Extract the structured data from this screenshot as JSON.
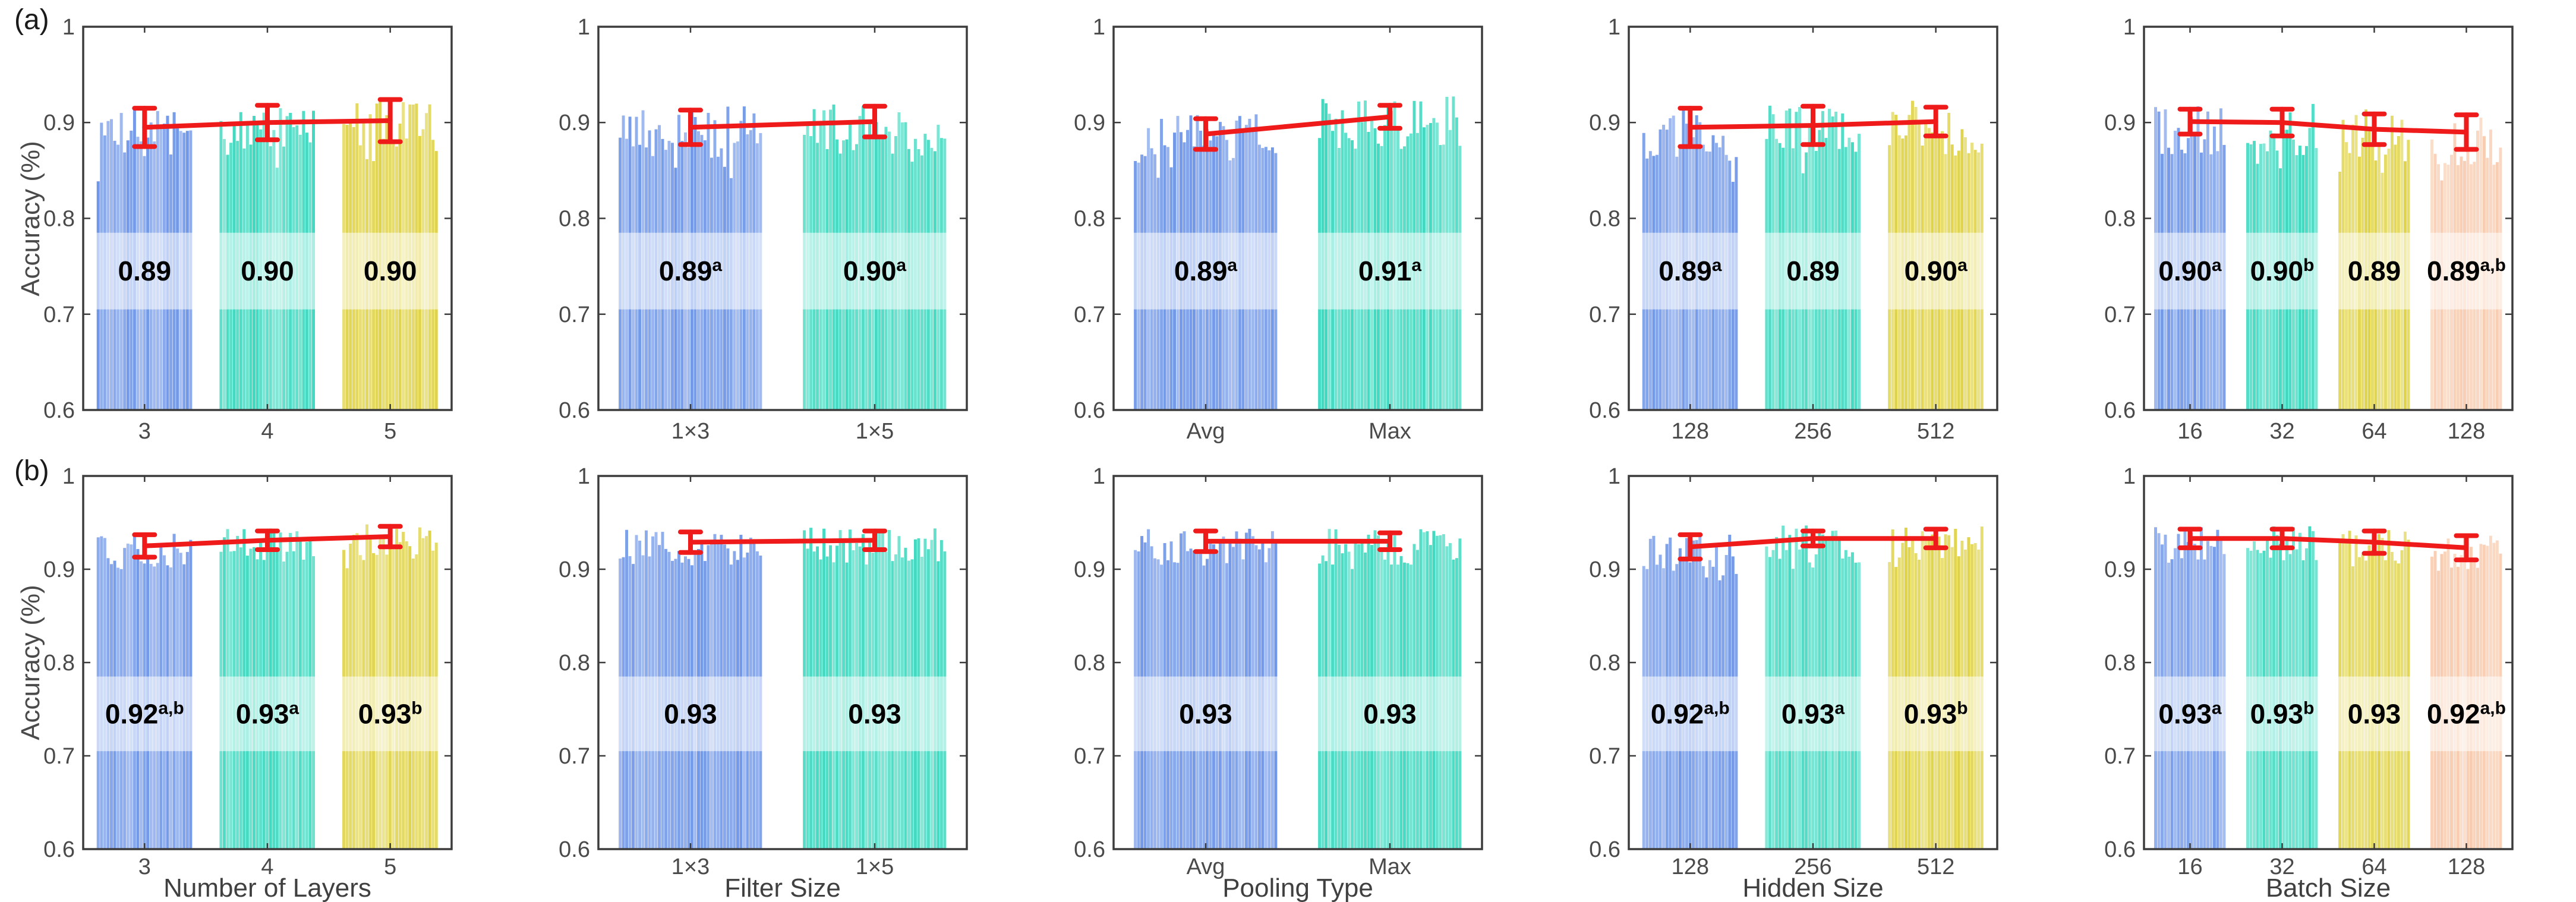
{
  "panel_labels": [
    "(a)",
    "(b)"
  ],
  "ylabel": "Accuracy (%)",
  "colors": {
    "bar_palette": [
      "#7097E8",
      "#41D9C0",
      "#DFD34A",
      "#F8CCB0"
    ],
    "error_bar": "#EF1A1A",
    "axis_frame": "#3C3C3C",
    "tick_text": "#4A4A4A",
    "xlabel_text": "#404040",
    "value_text": "#000000",
    "label_band": "rgba(255,255,255,0.55)"
  },
  "y_axis": {
    "min": 0.6,
    "max": 1.0,
    "tick_values": [
      1,
      0.9,
      0.8,
      0.7,
      0.6
    ],
    "tick_labels": [
      "1",
      "0.9",
      "0.8",
      "0.7",
      "0.6"
    ]
  },
  "chart_data": [
    {
      "panel": "a",
      "type": "bar",
      "xlabel": "",
      "column": "Number of Layers",
      "categories": [
        "3",
        "4",
        "5"
      ],
      "means": [
        0.895,
        0.9,
        0.902
      ],
      "errors": [
        0.02,
        0.018,
        0.022
      ],
      "value_labels": [
        "0.89",
        "0.90",
        "0.90"
      ],
      "superscripts": [
        "",
        "",
        ""
      ],
      "ylim": [
        0.6,
        1.0
      ]
    },
    {
      "panel": "a",
      "type": "bar",
      "xlabel": "",
      "column": "Filter Size",
      "categories": [
        "1×3",
        "1×5"
      ],
      "means": [
        0.895,
        0.901
      ],
      "errors": [
        0.018,
        0.016
      ],
      "value_labels": [
        "0.89",
        "0.90"
      ],
      "superscripts": [
        "a",
        "a"
      ],
      "ylim": [
        0.6,
        1.0
      ]
    },
    {
      "panel": "a",
      "type": "bar",
      "xlabel": "",
      "column": "Pooling Type",
      "categories": [
        "Avg",
        "Max"
      ],
      "means": [
        0.888,
        0.906
      ],
      "errors": [
        0.016,
        0.012
      ],
      "value_labels": [
        "0.89",
        "0.91"
      ],
      "superscripts": [
        "a",
        "a"
      ],
      "ylim": [
        0.6,
        1.0
      ]
    },
    {
      "panel": "a",
      "type": "bar",
      "xlabel": "",
      "column": "Hidden Size",
      "categories": [
        "128",
        "256",
        "512"
      ],
      "means": [
        0.895,
        0.897,
        0.901
      ],
      "errors": [
        0.02,
        0.02,
        0.015
      ],
      "value_labels": [
        "0.89",
        "0.89",
        "0.90"
      ],
      "superscripts": [
        "a",
        "",
        "a"
      ],
      "ylim": [
        0.6,
        1.0
      ]
    },
    {
      "panel": "a",
      "type": "bar",
      "xlabel": "",
      "column": "Batch Size",
      "categories": [
        "16",
        "32",
        "64",
        "128"
      ],
      "means": [
        0.901,
        0.9,
        0.893,
        0.89
      ],
      "errors": [
        0.013,
        0.014,
        0.016,
        0.018
      ],
      "value_labels": [
        "0.90",
        "0.90",
        "0.89",
        "0.89"
      ],
      "superscripts": [
        "a",
        "b",
        "",
        "a,b"
      ],
      "ylim": [
        0.6,
        1.0
      ]
    },
    {
      "panel": "b",
      "type": "bar",
      "xlabel": "Number of Layers",
      "column": "Number of Layers",
      "categories": [
        "3",
        "4",
        "5"
      ],
      "means": [
        0.925,
        0.931,
        0.935
      ],
      "errors": [
        0.012,
        0.01,
        0.011
      ],
      "value_labels": [
        "0.92",
        "0.93",
        "0.93"
      ],
      "superscripts": [
        "a,b",
        "a",
        "b"
      ],
      "ylim": [
        0.6,
        1.0
      ]
    },
    {
      "panel": "b",
      "type": "bar",
      "xlabel": "Filter Size",
      "column": "Filter Size",
      "categories": [
        "1×3",
        "1×5"
      ],
      "means": [
        0.929,
        0.931
      ],
      "errors": [
        0.011,
        0.01
      ],
      "value_labels": [
        "0.93",
        "0.93"
      ],
      "superscripts": [
        "",
        ""
      ],
      "ylim": [
        0.6,
        1.0
      ]
    },
    {
      "panel": "b",
      "type": "bar",
      "xlabel": "Pooling Type",
      "column": "Pooling Type",
      "categories": [
        "Avg",
        "Max"
      ],
      "means": [
        0.93,
        0.93
      ],
      "errors": [
        0.011,
        0.009
      ],
      "value_labels": [
        "0.93",
        "0.93"
      ],
      "superscripts": [
        "",
        ""
      ],
      "ylim": [
        0.6,
        1.0
      ]
    },
    {
      "panel": "b",
      "type": "bar",
      "xlabel": "Hidden Size",
      "column": "Hidden Size",
      "categories": [
        "128",
        "256",
        "512"
      ],
      "means": [
        0.924,
        0.933,
        0.933
      ],
      "errors": [
        0.013,
        0.008,
        0.01
      ],
      "value_labels": [
        "0.92",
        "0.93",
        "0.93"
      ],
      "superscripts": [
        "a,b",
        "a",
        "b"
      ],
      "ylim": [
        0.6,
        1.0
      ]
    },
    {
      "panel": "b",
      "type": "bar",
      "xlabel": "Batch Size",
      "column": "Batch Size",
      "categories": [
        "16",
        "32",
        "64",
        "128"
      ],
      "means": [
        0.933,
        0.933,
        0.929,
        0.923
      ],
      "errors": [
        0.01,
        0.01,
        0.012,
        0.013
      ],
      "value_labels": [
        "0.93",
        "0.93",
        "0.93",
        "0.92"
      ],
      "superscripts": [
        "a",
        "b",
        "",
        "a,b"
      ],
      "ylim": [
        0.6,
        1.0
      ]
    }
  ]
}
